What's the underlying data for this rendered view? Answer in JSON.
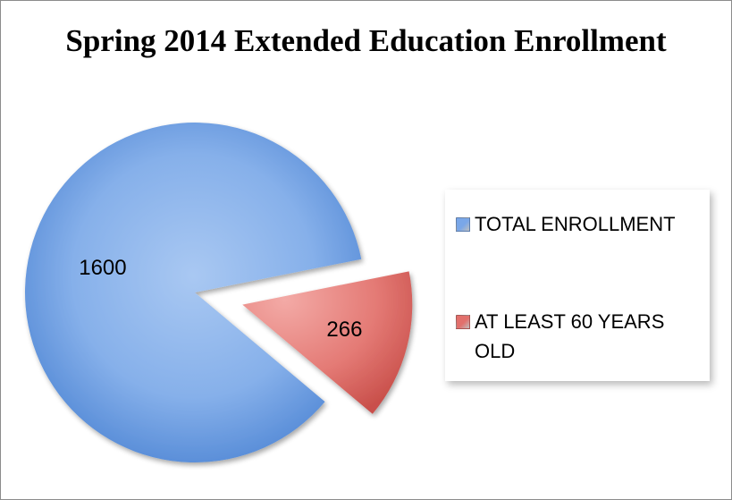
{
  "chart_data": {
    "type": "pie",
    "title": "Spring 2014 Extended Education Enrollment",
    "categories": [
      "TOTAL ENROLLMENT",
      "AT LEAST 60 YEARS OLD"
    ],
    "values": [
      1600,
      266
    ],
    "data_labels": [
      "1600",
      "266"
    ],
    "exploded": [
      false,
      true
    ],
    "colors": [
      "#7aa7e8",
      "#e2706c"
    ],
    "legend_position": "right"
  }
}
